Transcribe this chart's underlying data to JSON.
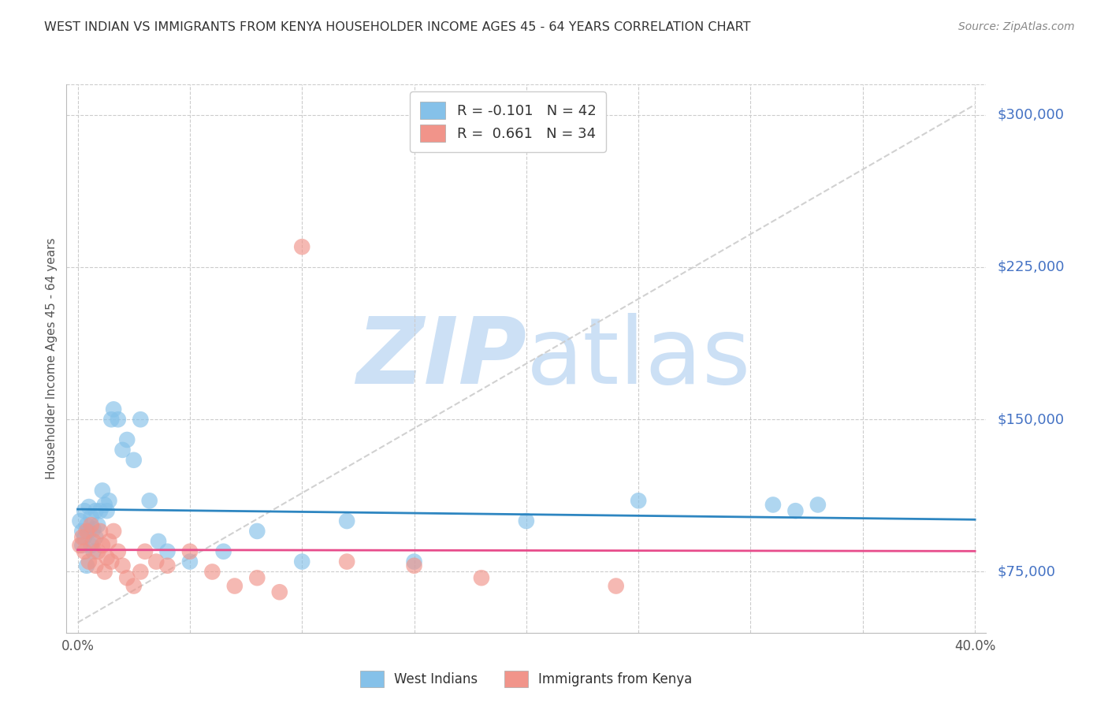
{
  "title": "WEST INDIAN VS IMMIGRANTS FROM KENYA HOUSEHOLDER INCOME AGES 45 - 64 YEARS CORRELATION CHART",
  "source": "Source: ZipAtlas.com",
  "ylabel": "Householder Income Ages 45 - 64 years",
  "xlim": [
    -0.005,
    0.405
  ],
  "ylim": [
    45000,
    315000
  ],
  "yticks": [
    75000,
    150000,
    225000,
    300000
  ],
  "ytick_labels": [
    "$75,000",
    "$150,000",
    "$225,000",
    "$300,000"
  ],
  "xticks": [
    0.0,
    0.05,
    0.1,
    0.15,
    0.2,
    0.25,
    0.3,
    0.35,
    0.4
  ],
  "background_color": "#ffffff",
  "grid_color": "#cccccc",
  "watermark_zip": "ZIP",
  "watermark_atlas": "atlas",
  "watermark_color": "#cce0f5",
  "blue_color": "#85C1E9",
  "pink_color": "#F1948A",
  "blue_line_color": "#2E86C1",
  "pink_line_color": "#E74C8B",
  "diag_line_color": "#cccccc",
  "title_color": "#333333",
  "axis_label_color": "#555555",
  "ytick_color": "#4472C4",
  "xtick_color": "#555555",
  "legend_R1_label": "R = ",
  "legend_R1_val": "-0.101",
  "legend_N1_label": "N = ",
  "legend_N1_val": "42",
  "legend_R2_label": "R =  ",
  "legend_R2_val": "0.661",
  "legend_N2_label": "N = ",
  "legend_N2_val": "34",
  "west_indians_x": [
    0.001,
    0.002,
    0.002,
    0.003,
    0.003,
    0.004,
    0.004,
    0.005,
    0.005,
    0.006,
    0.006,
    0.007,
    0.007,
    0.008,
    0.008,
    0.009,
    0.01,
    0.011,
    0.012,
    0.013,
    0.014,
    0.015,
    0.016,
    0.018,
    0.02,
    0.022,
    0.025,
    0.028,
    0.032,
    0.036,
    0.04,
    0.05,
    0.065,
    0.08,
    0.1,
    0.12,
    0.15,
    0.2,
    0.25,
    0.31,
    0.32,
    0.33
  ],
  "west_indians_y": [
    100000,
    95000,
    88000,
    92000,
    105000,
    98000,
    78000,
    107000,
    95000,
    88000,
    102000,
    96000,
    85000,
    105000,
    92000,
    98000,
    105000,
    115000,
    108000,
    105000,
    110000,
    150000,
    155000,
    150000,
    135000,
    140000,
    130000,
    150000,
    110000,
    90000,
    85000,
    80000,
    85000,
    95000,
    80000,
    100000,
    80000,
    100000,
    110000,
    108000,
    105000,
    108000
  ],
  "kenya_x": [
    0.001,
    0.002,
    0.003,
    0.004,
    0.005,
    0.006,
    0.007,
    0.008,
    0.009,
    0.01,
    0.011,
    0.012,
    0.013,
    0.014,
    0.015,
    0.016,
    0.018,
    0.02,
    0.022,
    0.025,
    0.028,
    0.03,
    0.035,
    0.04,
    0.05,
    0.06,
    0.07,
    0.08,
    0.09,
    0.1,
    0.12,
    0.15,
    0.18,
    0.24
  ],
  "kenya_y": [
    88000,
    92000,
    85000,
    95000,
    80000,
    98000,
    90000,
    78000,
    85000,
    95000,
    88000,
    75000,
    82000,
    90000,
    80000,
    95000,
    85000,
    78000,
    72000,
    68000,
    75000,
    85000,
    80000,
    78000,
    85000,
    75000,
    68000,
    72000,
    65000,
    235000,
    80000,
    78000,
    72000,
    68000
  ]
}
